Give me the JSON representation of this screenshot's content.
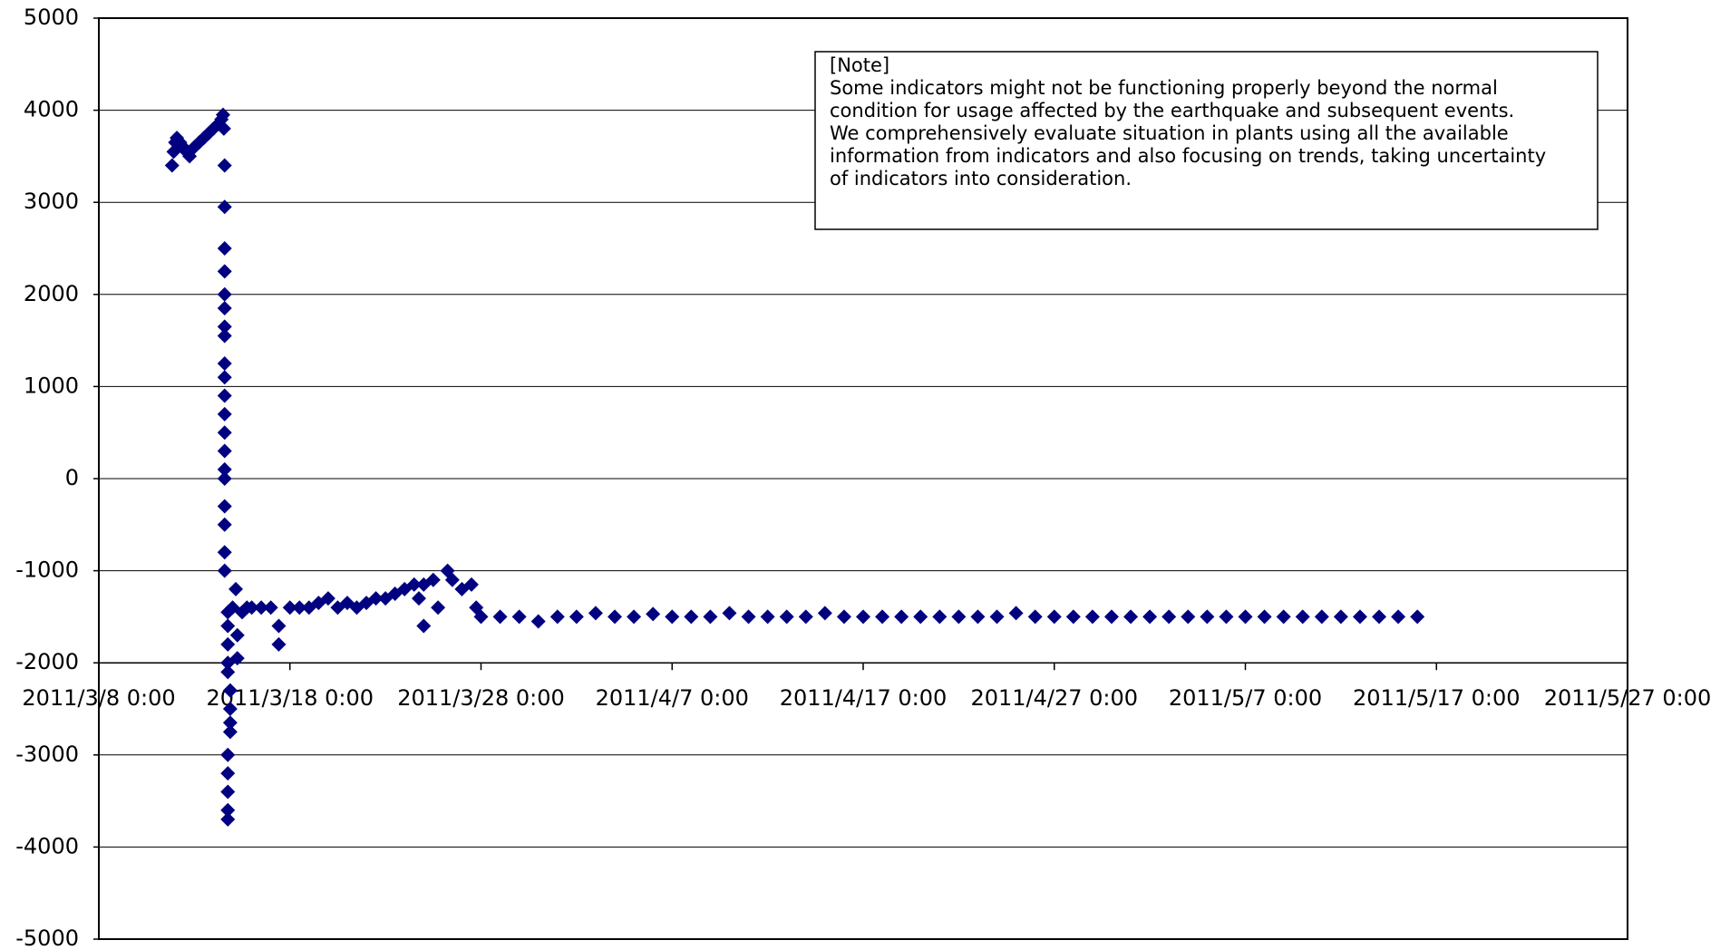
{
  "chart_data": {
    "type": "scatter",
    "color": "#000080",
    "xlim": [
      "2011/3/8 0:00",
      "2011/5/27 0:00"
    ],
    "xticks": [
      "2011/3/8 0:00",
      "2011/3/18 0:00",
      "2011/3/28 0:00",
      "2011/4/7 0:00",
      "2011/4/17 0:00",
      "2011/4/27 0:00",
      "2011/5/7 0:00",
      "2011/5/17 0:00",
      "2011/5/27 0:00"
    ],
    "ylim": [
      -5000,
      5000
    ],
    "yticks": [
      5000,
      4000,
      3000,
      2000,
      1000,
      0,
      -1000,
      -2000,
      -3000,
      -4000,
      -5000
    ],
    "xaxis_crosses": -2000,
    "grid": true,
    "annotation": [
      "[Note]",
      "Some indicators might not be functioning properly beyond the normal",
      "condition for usage affected by the earthquake and subsequent events.",
      "We comprehensively evaluate situation in plants using all the available",
      "information from indicators and also focusing on trends, taking uncertainty",
      "of indicators into consideration."
    ],
    "x": [
      "2011/3/11 20:00",
      "2011/3/11 22:00",
      "2011/3/12 0:00",
      "2011/3/12 2:00",
      "2011/3/12 6:00",
      "2011/3/12 10:00",
      "2011/3/12 14:00",
      "2011/3/12 18:00",
      "2011/3/13 0:00",
      "2011/3/13 6:00",
      "2011/3/13 12:00",
      "2011/3/13 18:00",
      "2011/3/14 0:00",
      "2011/3/14 6:00",
      "2011/3/14 10:00",
      "2011/3/14 12:00",
      "2011/3/14 13:00",
      "2011/3/14 14:00",
      "2011/3/14 14:00",
      "2011/3/14 14:00",
      "2011/3/14 14:00",
      "2011/3/14 14:00",
      "2011/3/14 14:00",
      "2011/3/14 14:00",
      "2011/3/14 14:00",
      "2011/3/14 14:00",
      "2011/3/14 14:00",
      "2011/3/14 14:00",
      "2011/3/14 14:00",
      "2011/3/14 14:00",
      "2011/3/14 14:00",
      "2011/3/14 14:00",
      "2011/3/14 14:00",
      "2011/3/14 14:00",
      "2011/3/14 14:00",
      "2011/3/14 14:00",
      "2011/3/14 14:00",
      "2011/3/14 18:00",
      "2011/3/14 18:00",
      "2011/3/14 18:00",
      "2011/3/14 18:00",
      "2011/3/14 18:00",
      "2011/3/14 18:00",
      "2011/3/14 18:00",
      "2011/3/14 18:00",
      "2011/3/14 18:00",
      "2011/3/14 18:00",
      "2011/3/14 21:00",
      "2011/3/14 21:00",
      "2011/3/14 21:00",
      "2011/3/14 21:00",
      "2011/3/15 0:00",
      "2011/3/15 4:00",
      "2011/3/15 6:00",
      "2011/3/15 6:00",
      "2011/3/15 12:00",
      "2011/3/15 18:00",
      "2011/3/16 0:00",
      "2011/3/16 12:00",
      "2011/3/17 0:00",
      "2011/3/17 10:00",
      "2011/3/17 10:00",
      "2011/3/18 0:00",
      "2011/3/18 12:00",
      "2011/3/19 0:00",
      "2011/3/19 12:00",
      "2011/3/20 0:00",
      "2011/3/20 12:00",
      "2011/3/21 0:00",
      "2011/3/21 12:00",
      "2011/3/22 0:00",
      "2011/3/22 12:00",
      "2011/3/23 0:00",
      "2011/3/23 12:00",
      "2011/3/24 0:00",
      "2011/3/24 12:00",
      "2011/3/24 18:00",
      "2011/3/25 0:00",
      "2011/3/25 0:00",
      "2011/3/25 12:00",
      "2011/3/25 18:00",
      "2011/3/26 6:00",
      "2011/3/26 12:00",
      "2011/3/27 0:00",
      "2011/3/27 12:00",
      "2011/3/27 18:00",
      "2011/3/28 0:00",
      "2011/3/29 0:00",
      "2011/3/30 0:00",
      "2011/3/31 0:00",
      "2011/4/1 0:00",
      "2011/4/2 0:00",
      "2011/4/3 0:00",
      "2011/4/4 0:00",
      "2011/4/5 0:00",
      "2011/4/6 0:00",
      "2011/4/7 0:00",
      "2011/4/8 0:00",
      "2011/4/9 0:00",
      "2011/4/10 0:00",
      "2011/4/11 0:00",
      "2011/4/12 0:00",
      "2011/4/13 0:00",
      "2011/4/14 0:00",
      "2011/4/15 0:00",
      "2011/4/16 0:00",
      "2011/4/17 0:00",
      "2011/4/18 0:00",
      "2011/4/19 0:00",
      "2011/4/20 0:00",
      "2011/4/21 0:00",
      "2011/4/22 0:00",
      "2011/4/23 0:00",
      "2011/4/24 0:00",
      "2011/4/25 0:00",
      "2011/4/26 0:00",
      "2011/4/27 0:00",
      "2011/4/28 0:00",
      "2011/4/29 0:00",
      "2011/4/30 0:00",
      "2011/5/1 0:00",
      "2011/5/2 0:00",
      "2011/5/3 0:00",
      "2011/5/4 0:00",
      "2011/5/5 0:00",
      "2011/5/6 0:00",
      "2011/5/7 0:00",
      "2011/5/8 0:00",
      "2011/5/9 0:00",
      "2011/5/10 0:00",
      "2011/5/11 0:00",
      "2011/5/12 0:00",
      "2011/5/13 0:00",
      "2011/5/14 0:00",
      "2011/5/15 0:00",
      "2011/5/16 0:00"
    ],
    "values": [
      3400,
      3550,
      3650,
      3700,
      3650,
      3600,
      3550,
      3500,
      3600,
      3650,
      3700,
      3750,
      3800,
      3850,
      3900,
      3950,
      3800,
      3400,
      2950,
      2500,
      2250,
      2000,
      1850,
      1650,
      1550,
      1250,
      1100,
      900,
      700,
      500,
      300,
      100,
      0,
      -300,
      -500,
      -800,
      -1000,
      -1450,
      -1600,
      -1800,
      -2000,
      -2100,
      -3000,
      -3200,
      -3400,
      -3600,
      -3700,
      -2300,
      -2500,
      -2650,
      -2750,
      -1400,
      -1200,
      -1700,
      -1950,
      -1450,
      -1400,
      -1400,
      -1400,
      -1400,
      -1600,
      -1800,
      -1400,
      -1400,
      -1400,
      -1350,
      -1300,
      -1400,
      -1350,
      -1400,
      -1350,
      -1300,
      -1300,
      -1250,
      -1200,
      -1150,
      -1300,
      -1150,
      -1600,
      -1100,
      -1400,
      -1000,
      -1100,
      -1200,
      -1150,
      -1400,
      -1500,
      -1500,
      -1500,
      -1550,
      -1500,
      -1500,
      -1460,
      -1500,
      -1500,
      -1470,
      -1500,
      -1500,
      -1500,
      -1460,
      -1500,
      -1500,
      -1500,
      -1500,
      -1460,
      -1500,
      -1500,
      -1500,
      -1500,
      -1500,
      -1500,
      -1500,
      -1500,
      -1500,
      -1460,
      -1500,
      -1500,
      -1500,
      -1500,
      -1500,
      -1500,
      -1500,
      -1500,
      -1500,
      -1500,
      -1500,
      -1500,
      -1500,
      -1500,
      -1500,
      -1500,
      -1500,
      -1500,
      -1500,
      -1500,
      -1500
    ]
  }
}
